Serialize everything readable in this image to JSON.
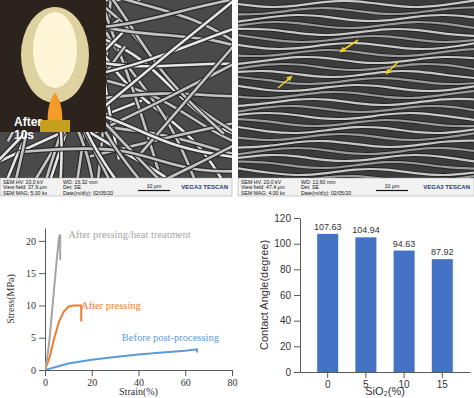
{
  "chart_data": [
    {
      "type": "line",
      "xlabel": "Strain(%)",
      "ylabel": "Stress(MPa)",
      "xlim": [
        0,
        80
      ],
      "xticks": [
        0,
        20,
        40,
        60,
        80
      ],
      "ylim": [
        0,
        22
      ],
      "yticks": [
        0,
        5,
        10,
        15,
        20
      ],
      "series": [
        {
          "name": "Before post-processing",
          "color": "#5b9bd5",
          "x": [
            0,
            5,
            10,
            20,
            30,
            40,
            50,
            60,
            65,
            65
          ],
          "values": [
            0,
            0.5,
            1,
            1.6,
            2,
            2.4,
            2.7,
            3,
            3.2,
            2.7
          ]
        },
        {
          "name": "After pressing",
          "color": "#ed7d31",
          "x": [
            0,
            2,
            4,
            6,
            8,
            10,
            12,
            15,
            15.5,
            15.5
          ],
          "values": [
            0,
            2,
            5,
            7.5,
            9,
            9.8,
            10,
            10,
            10,
            7.5
          ]
        },
        {
          "name": "After pressing/heat treatment",
          "color": "#a5a5a5",
          "x": [
            0,
            1,
            2,
            3,
            4,
            5,
            6,
            6.5,
            6.5
          ],
          "values": [
            0,
            2,
            5,
            9,
            13,
            17,
            20.5,
            21,
            17
          ]
        }
      ]
    },
    {
      "type": "bar",
      "xlabel": "SiO₂(%)",
      "ylabel": "Contact Angle(degree)",
      "categories": [
        "0",
        "5",
        "10",
        "15"
      ],
      "values": [
        107.63,
        104.94,
        94.63,
        87.92
      ],
      "color": "#4472c4",
      "ylim": [
        0,
        120
      ],
      "yticks": [
        0,
        20,
        40,
        60,
        80,
        100,
        120
      ],
      "data_labels": true
    }
  ],
  "images": [
    {
      "inset_lines": [
        "After",
        "10s"
      ],
      "info_rows": [
        [
          "SEM HV: 20.0 kV",
          "WD: 16.32 mm"
        ],
        [
          "View field: 37.9 μm",
          "Det: SE"
        ],
        [
          "SEM MAG: 5.00 kx",
          "Date(m/d/y): 02/05/20"
        ]
      ],
      "scale_bar": "10 μm",
      "brand": "VEGA3 TESCAN"
    },
    {
      "info_rows": [
        [
          "SEM HV: 20.0 kV",
          "WD: 12.60 mm"
        ],
        [
          "View field: 47.4 μm",
          "Det: SE"
        ],
        [
          "SEM MAG: 4.00 kx",
          "Date(m/d/y): 02/05/20"
        ]
      ],
      "scale_bar": "10 μm",
      "brand": "VEGA3 TESCAN"
    }
  ]
}
